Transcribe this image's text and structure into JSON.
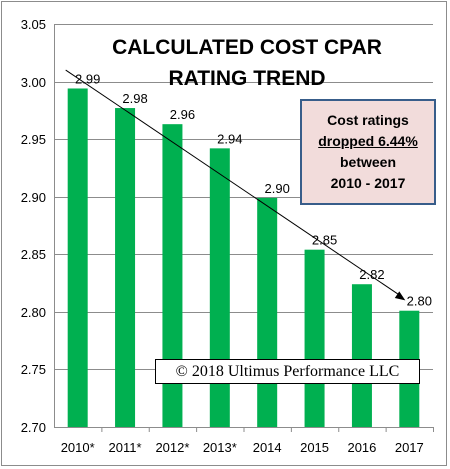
{
  "chart_data": {
    "type": "bar",
    "title_lines": [
      "CALCULATED COST CPAR",
      "RATING TREND"
    ],
    "categories": [
      "2010*",
      "2011*",
      "2012*",
      "2013*",
      "2014",
      "2015",
      "2016",
      "2017"
    ],
    "values": [
      2.994,
      2.977,
      2.963,
      2.942,
      2.899,
      2.854,
      2.824,
      2.801
    ],
    "data_labels": [
      "2.99",
      "2.98",
      "2.96",
      "2.94",
      "2.90",
      "2.85",
      "2.82",
      "2.80"
    ],
    "ylim": [
      2.7,
      3.05
    ],
    "yticks": [
      "2.70",
      "2.75",
      "2.80",
      "2.85",
      "2.90",
      "2.95",
      "3.00",
      "3.05"
    ],
    "xlabel": "",
    "ylabel": "",
    "grid": "horizontal",
    "legend": "none",
    "trend_arrow": {
      "from": {
        "x": "2010*",
        "y": 3.01
      },
      "to": {
        "x": "2017",
        "y": 2.81
      }
    },
    "colors": {
      "bar": "#00b050",
      "gridline": "#8c8c8c",
      "callout_fill": "#f2dcdb",
      "callout_border": "#385d8a"
    }
  },
  "callout": {
    "line1": "Cost ratings",
    "line2": "dropped 6.44%",
    "line3": "between",
    "line4": "2010 - 2017"
  },
  "copyright": "© 2018 Ultimus Performance LLC"
}
